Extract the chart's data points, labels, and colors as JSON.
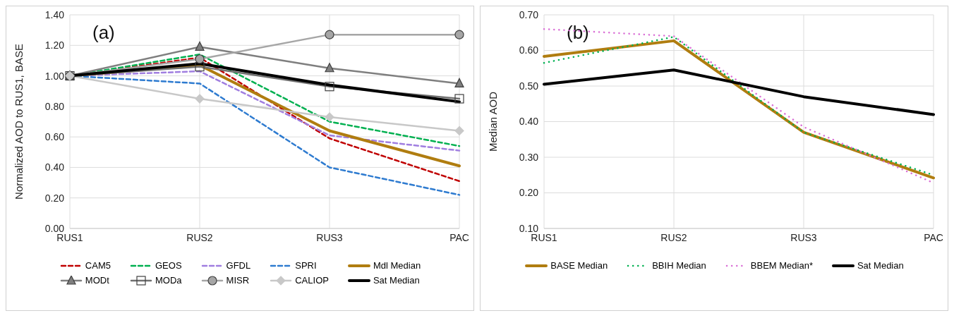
{
  "chart_data": [
    {
      "type": "line",
      "ylabel": "Normalized AOD to RUS1, BASE",
      "annotations": [
        "(a)"
      ],
      "categories": [
        "RUS1",
        "RUS2",
        "RUS3",
        "PAC"
      ],
      "ylim": [
        0,
        1.4
      ],
      "yticks": [
        {
          "value": 0,
          "label": "0.00"
        },
        {
          "value": 0.2,
          "label": "0.20"
        },
        {
          "value": 0.4,
          "label": "0.40"
        },
        {
          "value": 0.6,
          "label": "0.60"
        },
        {
          "value": 0.8,
          "label": "0.80"
        },
        {
          "value": 1,
          "label": "1.00"
        },
        {
          "value": 1.2,
          "label": "1.20"
        },
        {
          "value": 1.4,
          "label": "1.40"
        }
      ],
      "grid": true,
      "legend": "bottom",
      "series": [
        {
          "name": "CAM5",
          "color": "#c00000",
          "values": [
            1.0,
            1.12,
            0.59,
            0.31
          ],
          "line_style": "dashed",
          "marker": "none"
        },
        {
          "name": "GEOS",
          "color": "#00b050",
          "values": [
            1.0,
            1.14,
            0.7,
            0.54
          ],
          "line_style": "dashed",
          "marker": "none"
        },
        {
          "name": "GFDL",
          "color": "#a07ee0",
          "values": [
            1.0,
            1.03,
            0.61,
            0.51
          ],
          "line_style": "dashed",
          "marker": "none"
        },
        {
          "name": "SPRI",
          "color": "#2e7bd0",
          "values": [
            1.0,
            0.95,
            0.4,
            0.22
          ],
          "line_style": "dashed",
          "marker": "none"
        },
        {
          "name": "Mdl Median",
          "color": "#b07d10",
          "values": [
            1.0,
            1.07,
            0.64,
            0.41
          ],
          "line_style": "solid",
          "marker": "none"
        },
        {
          "name": "MODt",
          "color": "#7f7f7f",
          "values": [
            1.0,
            1.19,
            1.05,
            0.95
          ],
          "line_style": "solid",
          "marker": "triangle"
        },
        {
          "name": "MODa",
          "color": "#707070",
          "values": [
            1.0,
            1.06,
            0.93,
            0.85
          ],
          "line_style": "solid",
          "marker": "square"
        },
        {
          "name": "MISR",
          "color": "#a6a6a6",
          "values": [
            1.0,
            1.11,
            1.27,
            1.27
          ],
          "line_style": "solid",
          "marker": "circle"
        },
        {
          "name": "CALIOP",
          "color": "#c8c8c8",
          "values": [
            1.0,
            0.85,
            0.73,
            0.64
          ],
          "line_style": "solid",
          "marker": "diamond"
        },
        {
          "name": "Sat Median",
          "color": "#000000",
          "values": [
            1.0,
            1.08,
            0.94,
            0.83
          ],
          "line_style": "solid",
          "marker": "none"
        }
      ]
    },
    {
      "type": "line",
      "ylabel": "Median AOD",
      "annotations": [
        "(b)"
      ],
      "categories": [
        "RUS1",
        "RUS2",
        "RUS3",
        "PAC"
      ],
      "ylim": [
        0.1,
        0.7
      ],
      "yticks": [
        {
          "value": 0.1,
          "label": "0.10"
        },
        {
          "value": 0.2,
          "label": "0.20"
        },
        {
          "value": 0.3,
          "label": "0.30"
        },
        {
          "value": 0.4,
          "label": "0.40"
        },
        {
          "value": 0.5,
          "label": "0.50"
        },
        {
          "value": 0.6,
          "label": "0.60"
        },
        {
          "value": 0.7,
          "label": "0.70"
        }
      ],
      "grid": true,
      "legend": "bottom",
      "series": [
        {
          "name": "BASE Median",
          "color": "#b07d10",
          "values": [
            0.583,
            0.627,
            0.37,
            0.242
          ],
          "line_style": "solid",
          "marker": "none"
        },
        {
          "name": "BBIH Median",
          "color": "#00b050",
          "values": [
            0.565,
            0.638,
            0.37,
            0.25
          ],
          "line_style": "dotted",
          "marker": "none"
        },
        {
          "name": "BBEM Median*",
          "color": "#da70d6",
          "values": [
            0.66,
            0.64,
            0.385,
            0.228
          ],
          "line_style": "dotted",
          "marker": "none"
        },
        {
          "name": "Sat Median",
          "color": "#000000",
          "values": [
            0.505,
            0.545,
            0.47,
            0.42
          ],
          "line_style": "solid",
          "marker": "none"
        }
      ]
    }
  ]
}
